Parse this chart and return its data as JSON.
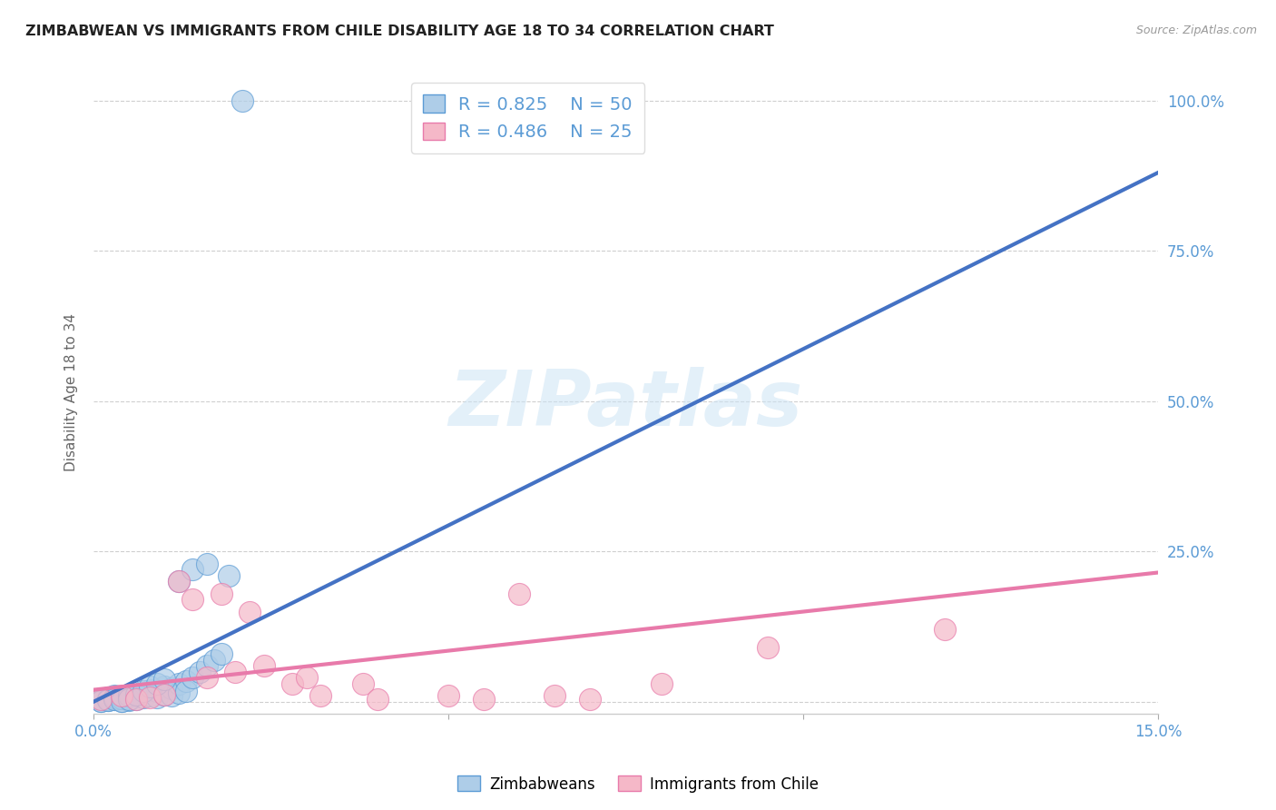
{
  "title": "ZIMBABWEAN VS IMMIGRANTS FROM CHILE DISABILITY AGE 18 TO 34 CORRELATION CHART",
  "source": "Source: ZipAtlas.com",
  "ylabel_label": "Disability Age 18 to 34",
  "legend_blue_label": "Zimbabweans",
  "legend_pink_label": "Immigrants from Chile",
  "blue_R": "0.825",
  "blue_N": "50",
  "pink_R": "0.486",
  "pink_N": "25",
  "blue_color": "#aecde8",
  "pink_color": "#f5b8c8",
  "blue_edge_color": "#5b9bd5",
  "pink_edge_color": "#e87aaa",
  "blue_line_color": "#4472c4",
  "pink_line_color": "#e87aaa",
  "watermark": "ZIPatlas",
  "background_color": "#ffffff",
  "grid_color": "#b0b0b0",
  "tick_color": "#5b9bd5",
  "xmin": 0.0,
  "xmax": 0.15,
  "ymin": -0.02,
  "ymax": 1.05,
  "blue_line_x": [
    0.0,
    0.15
  ],
  "blue_line_y": [
    0.0,
    0.88
  ],
  "pink_line_x": [
    0.0,
    0.15
  ],
  "pink_line_y": [
    0.02,
    0.215
  ],
  "blue_scatter_x": [
    0.001,
    0.002,
    0.002,
    0.003,
    0.003,
    0.004,
    0.004,
    0.005,
    0.005,
    0.006,
    0.006,
    0.007,
    0.007,
    0.008,
    0.008,
    0.009,
    0.009,
    0.01,
    0.01,
    0.011,
    0.011,
    0.012,
    0.012,
    0.013,
    0.013,
    0.014,
    0.015,
    0.016,
    0.017,
    0.018,
    0.001,
    0.001,
    0.002,
    0.002,
    0.003,
    0.003,
    0.004,
    0.004,
    0.005,
    0.005,
    0.006,
    0.007,
    0.008,
    0.009,
    0.01,
    0.012,
    0.014,
    0.016,
    0.019,
    0.021
  ],
  "blue_scatter_y": [
    0.005,
    0.008,
    0.003,
    0.01,
    0.004,
    0.006,
    0.002,
    0.008,
    0.003,
    0.012,
    0.005,
    0.015,
    0.007,
    0.02,
    0.01,
    0.018,
    0.008,
    0.025,
    0.012,
    0.022,
    0.01,
    0.03,
    0.015,
    0.035,
    0.018,
    0.04,
    0.05,
    0.06,
    0.07,
    0.08,
    0.002,
    0.001,
    0.005,
    0.003,
    0.008,
    0.004,
    0.006,
    0.002,
    0.01,
    0.005,
    0.012,
    0.018,
    0.025,
    0.03,
    0.038,
    0.2,
    0.22,
    0.23,
    0.21,
    1.0
  ],
  "pink_scatter_x": [
    0.001,
    0.004,
    0.006,
    0.008,
    0.01,
    0.012,
    0.014,
    0.016,
    0.018,
    0.02,
    0.022,
    0.024,
    0.028,
    0.03,
    0.032,
    0.038,
    0.04,
    0.05,
    0.055,
    0.06,
    0.065,
    0.07,
    0.08,
    0.095,
    0.12
  ],
  "pink_scatter_y": [
    0.005,
    0.01,
    0.005,
    0.008,
    0.012,
    0.2,
    0.17,
    0.04,
    0.18,
    0.05,
    0.15,
    0.06,
    0.03,
    0.04,
    0.01,
    0.03,
    0.005,
    0.01,
    0.005,
    0.18,
    0.01,
    0.005,
    0.03,
    0.09,
    0.12
  ]
}
